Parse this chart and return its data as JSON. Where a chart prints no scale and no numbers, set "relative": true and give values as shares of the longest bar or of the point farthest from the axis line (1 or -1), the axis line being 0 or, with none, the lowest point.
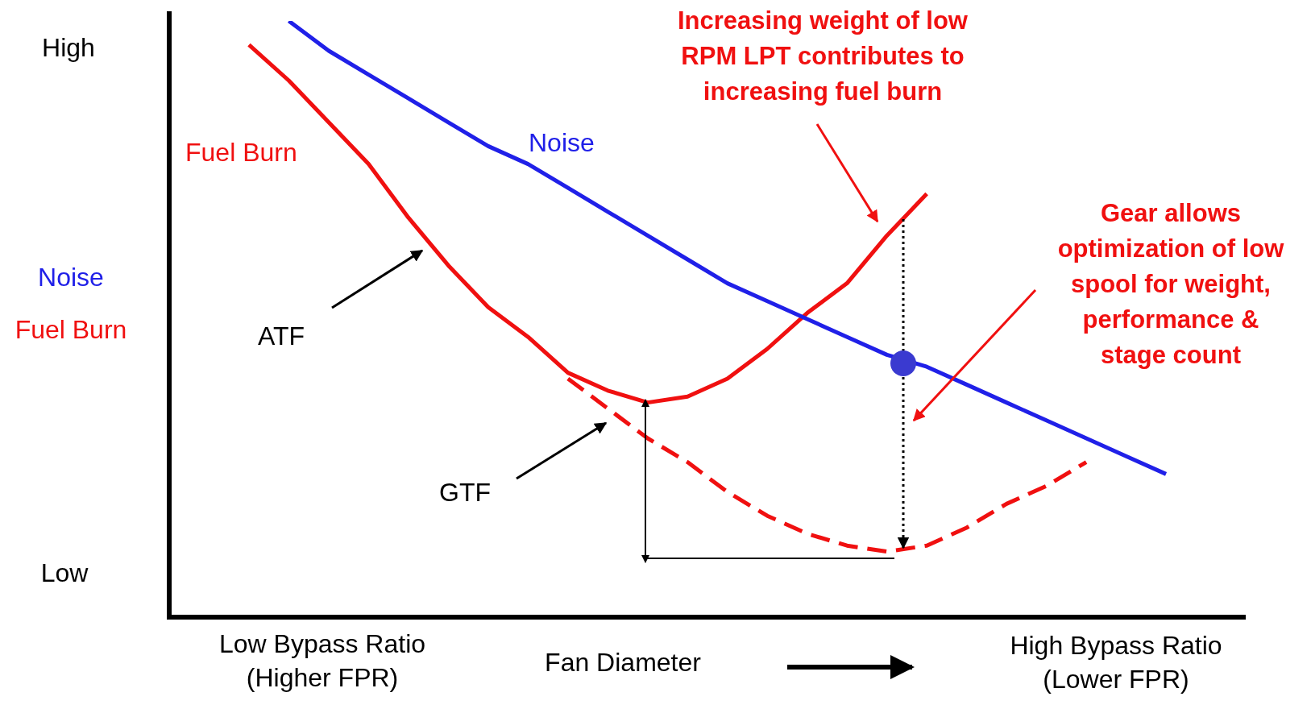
{
  "chart_data": {
    "type": "line",
    "relative": true,
    "legend": false,
    "marker": "none",
    "line_style": "solid",
    "xlabel": "Fan Diameter",
    "ylabel": "Noise\nFuel Burn",
    "categories": [
      null,
      null,
      null,
      null,
      null,
      null,
      null,
      null,
      null,
      null,
      null,
      null,
      null,
      null,
      null,
      null,
      null,
      null,
      null,
      null,
      null,
      null,
      null,
      null,
      null,
      null,
      null,
      null
    ],
    "annotations": [
      "High",
      "Low",
      "Low Bypass Ratio\n(Higher FPR)",
      "High Bypass Ratio\n(Lower FPR)",
      "ATF",
      "GTF",
      "Increasing weight of low RPM LPT contributes to increasing fuel burn",
      "Gear allows optimization of low spool for weight, performance & stage count"
    ],
    "series": [
      {
        "name": "Noise",
        "color": "#2020e8",
        "values": [
          null,
          null,
          null,
          1.0,
          0.95,
          0.91,
          0.87,
          0.83,
          0.79,
          0.76,
          0.72,
          0.68,
          0.64,
          0.6,
          0.56,
          0.53,
          0.5,
          0.47,
          0.44,
          0.42,
          0.39,
          0.36,
          0.33,
          0.3,
          0.27,
          0.24,
          null,
          null
        ]
      },
      {
        "name": "Fuel Burn",
        "color": "#f01010",
        "values": [
          null,
          null,
          0.96,
          0.9,
          0.83,
          0.76,
          0.67,
          0.59,
          0.52,
          0.47,
          0.41,
          0.38,
          0.36,
          0.37,
          0.4,
          0.45,
          0.51,
          0.56,
          0.64,
          0.71,
          null,
          null,
          null,
          null,
          null,
          null,
          null,
          null
        ]
      },
      {
        "color": "#f01010",
        "line_style": "dashed",
        "values": [
          null,
          null,
          null,
          null,
          null,
          null,
          null,
          null,
          null,
          null,
          0.4,
          0.35,
          0.3,
          0.26,
          0.21,
          0.17,
          0.14,
          0.12,
          0.11,
          0.12,
          0.15,
          0.19,
          0.22,
          0.26,
          null,
          null,
          null,
          null
        ]
      }
    ]
  }
}
